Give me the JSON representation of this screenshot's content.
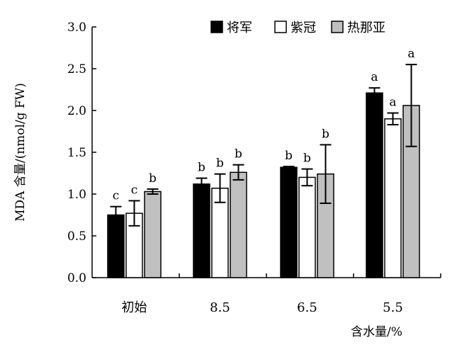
{
  "chart_data": {
    "type": "bar",
    "categories": [
      "初始",
      "8.5",
      "6.5",
      "5.5"
    ],
    "xlabel": "含水量/%",
    "ylabel": "MDA 含量/(nmol/g FW)",
    "ylim": [
      0,
      3.0
    ],
    "yticks": [
      "0.0",
      "0.5",
      "1.0",
      "1.5",
      "2.0",
      "2.5",
      "3.0"
    ],
    "grid": false,
    "legend_position": "top-right",
    "series": [
      {
        "name": "将军",
        "color": "#000000",
        "values": [
          0.75,
          1.12,
          1.32,
          2.21
        ],
        "errors": [
          0.1,
          0.07,
          0.01,
          0.06
        ],
        "letters": [
          "c",
          "b",
          "b",
          "a"
        ]
      },
      {
        "name": "紫冠",
        "color": "#ffffff",
        "values": [
          0.77,
          1.07,
          1.2,
          1.9
        ],
        "errors": [
          0.15,
          0.17,
          0.1,
          0.07
        ],
        "letters": [
          "c",
          "b",
          "b",
          "a"
        ]
      },
      {
        "name": "热那亚",
        "color": "#c0c0c0",
        "values": [
          1.03,
          1.26,
          1.24,
          2.06
        ],
        "errors": [
          0.03,
          0.09,
          0.35,
          0.49
        ],
        "letters": [
          "b",
          "b",
          "b",
          "a"
        ]
      }
    ]
  }
}
